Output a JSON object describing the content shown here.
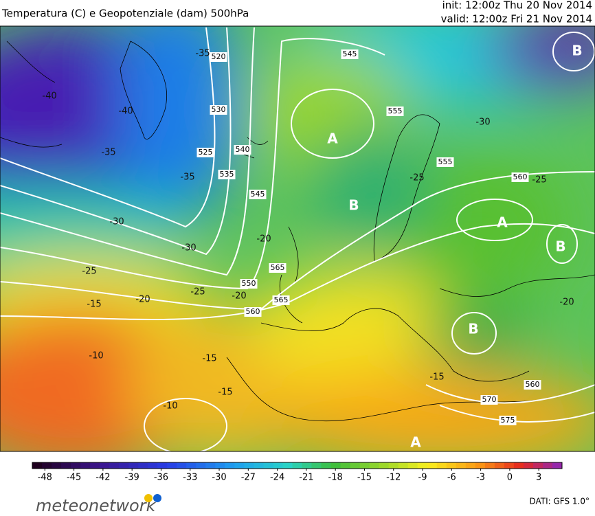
{
  "header": {
    "title": "Temperatura (C) e Geopotenziale (dam) 500hPa",
    "init": "init: 12:00z Thu 20 Nov 2014",
    "valid": "valid: 12:00z Fri 21 Nov 2014"
  },
  "map": {
    "centers": [
      "B",
      "A",
      "B",
      "A",
      "B",
      "B",
      "A"
    ],
    "geopotential_labels": [
      "520",
      "530",
      "525",
      "535",
      "540",
      "545",
      "545",
      "555",
      "560",
      "550",
      "560",
      "565",
      "565",
      "570",
      "575",
      "560",
      "555"
    ],
    "temperature_labels": [
      "-40",
      "-40",
      "-35",
      "-35",
      "-30",
      "-30",
      "-25",
      "-25",
      "-20",
      "-20",
      "-20",
      "-15",
      "-15",
      "-15",
      "-10",
      "-10",
      "-35",
      "-30",
      "-25",
      "-25",
      "-20",
      "-15"
    ]
  },
  "colorbar": {
    "lim": [
      -49.3,
      5.4
    ],
    "ticks": [
      -48,
      -45,
      -42,
      -39,
      -36,
      -33,
      -30,
      -27,
      -24,
      -21,
      -18,
      -15,
      -12,
      -9,
      -6,
      -3,
      0,
      3
    ]
  },
  "footer": {
    "logo": "meteonetwork",
    "source": "DATI: GFS 1.0°"
  }
}
